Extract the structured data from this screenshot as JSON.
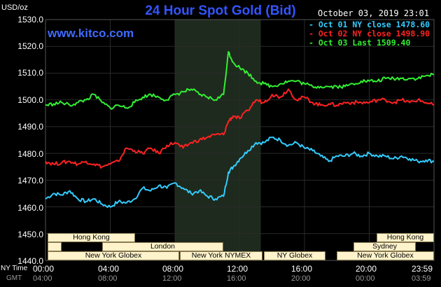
{
  "header": {
    "title": "24 Hour Spot Gold (Bid)",
    "brand": "www.kitco.com",
    "units": "USD/oz",
    "datetime": "October 03, 2019 23:01"
  },
  "legend": [
    {
      "label": "Oct 01 NY close 1478.60",
      "color": "#33ccff"
    },
    {
      "label": "Oct 02 NY close 1498.90",
      "color": "#ff2222"
    },
    {
      "label": "Oct 03 Last 1509.40",
      "color": "#33ee33"
    }
  ],
  "axes": {
    "y_ticks": [
      "1530.0",
      "1520.0",
      "1510.0",
      "1500.0",
      "1490.0",
      "1480.0",
      "1470.0",
      "1460.0",
      "1450.0",
      "1440.0"
    ],
    "x_ticks_ny": [
      "00:00",
      "04:00",
      "08:00",
      "12:00",
      "16:00",
      "20:00",
      "23:59"
    ],
    "x_ticks_gmt": [
      "04:00",
      "08:00",
      "12:00",
      "16:00",
      "20:00",
      "00:00",
      "03:59"
    ],
    "row_label_ny": "NY Time",
    "row_label_gmt": "GMT"
  },
  "sessions": {
    "hong_kong_left": "Hong Kong",
    "london": "London",
    "new_york_globex_left": "New York Globex",
    "new_york_nymex": "New York NYMEX",
    "ny_globex": "NY Globex",
    "hong_kong_right": "Hong Kong",
    "sydney": "Sydney",
    "new_york_globex_right": "New York Globex"
  },
  "colors": {
    "background": "#000000",
    "plot_area": "#000000",
    "highlight_band": "#1e2a1e",
    "grid": "#2a2a2a",
    "title": "#3355ff"
  },
  "chart_data": {
    "type": "line",
    "x_unit": "hours since 00:00 NY",
    "ylim": [
      1440,
      1530
    ],
    "xlim": [
      0,
      24
    ],
    "grid": true,
    "legend_position": "top-right",
    "highlight": {
      "from": 8,
      "to": 13.3
    },
    "series": [
      {
        "name": "Oct 01 NY close 1478.60",
        "color": "#33ccff",
        "points": [
          [
            0,
            1463
          ],
          [
            0.5,
            1465
          ],
          [
            1,
            1464.5
          ],
          [
            1.5,
            1466
          ],
          [
            2,
            1463
          ],
          [
            2.5,
            1462
          ],
          [
            3,
            1463
          ],
          [
            3.5,
            1461
          ],
          [
            4,
            1460
          ],
          [
            4.5,
            1462
          ],
          [
            5,
            1461.5
          ],
          [
            5.5,
            1463
          ],
          [
            6,
            1467
          ],
          [
            6.5,
            1466
          ],
          [
            7,
            1468
          ],
          [
            7.5,
            1467
          ],
          [
            8,
            1469
          ],
          [
            8.5,
            1467
          ],
          [
            9,
            1465
          ],
          [
            9.5,
            1466
          ],
          [
            10,
            1464
          ],
          [
            10.5,
            1463
          ],
          [
            11,
            1464
          ],
          [
            11.3,
            1473
          ],
          [
            11.6,
            1475
          ],
          [
            12,
            1478
          ],
          [
            12.5,
            1481
          ],
          [
            13,
            1484
          ],
          [
            13.5,
            1484
          ],
          [
            14,
            1486
          ],
          [
            14.5,
            1485
          ],
          [
            15,
            1483
          ],
          [
            15.5,
            1484
          ],
          [
            16,
            1482
          ],
          [
            16.5,
            1481
          ],
          [
            17,
            1479
          ],
          [
            17.5,
            1477
          ],
          [
            18,
            1479
          ],
          [
            18.5,
            1479
          ],
          [
            19,
            1480
          ],
          [
            19.5,
            1479
          ],
          [
            20,
            1480
          ],
          [
            20.5,
            1479
          ],
          [
            21,
            1479
          ],
          [
            21.5,
            1478
          ],
          [
            22,
            1479
          ],
          [
            22.5,
            1478
          ],
          [
            23,
            1477
          ],
          [
            23.5,
            1477.5
          ],
          [
            24,
            1477
          ]
        ]
      },
      {
        "name": "Oct 02 NY close 1498.90",
        "color": "#ff2222",
        "points": [
          [
            0,
            1477
          ],
          [
            0.5,
            1476
          ],
          [
            1,
            1476.5
          ],
          [
            1.5,
            1477
          ],
          [
            2,
            1476
          ],
          [
            2.5,
            1477
          ],
          [
            3,
            1476
          ],
          [
            3.5,
            1475
          ],
          [
            4,
            1476
          ],
          [
            4.5,
            1477
          ],
          [
            5,
            1482
          ],
          [
            5.5,
            1481
          ],
          [
            6,
            1480
          ],
          [
            6.5,
            1482
          ],
          [
            7,
            1480
          ],
          [
            7.5,
            1483
          ],
          [
            8,
            1484
          ],
          [
            8.5,
            1482
          ],
          [
            9,
            1484
          ],
          [
            9.5,
            1485
          ],
          [
            10,
            1486
          ],
          [
            10.5,
            1487
          ],
          [
            11,
            1487
          ],
          [
            11.3,
            1492
          ],
          [
            11.6,
            1494
          ],
          [
            12,
            1493
          ],
          [
            12.5,
            1496
          ],
          [
            13,
            1500
          ],
          [
            13.5,
            1499
          ],
          [
            14,
            1502
          ],
          [
            14.5,
            1501
          ],
          [
            15,
            1504
          ],
          [
            15.5,
            1500
          ],
          [
            16,
            1501
          ],
          [
            16.5,
            1499
          ],
          [
            17,
            1498
          ],
          [
            17.5,
            1498.5
          ],
          [
            18,
            1498
          ],
          [
            18.5,
            1499
          ],
          [
            19,
            1499
          ],
          [
            19.5,
            1499
          ],
          [
            20,
            1499
          ],
          [
            20.5,
            1500
          ],
          [
            21,
            1500
          ],
          [
            21.5,
            1499
          ],
          [
            22,
            1500
          ],
          [
            22.5,
            1499
          ],
          [
            23,
            1500
          ],
          [
            23.5,
            1499
          ],
          [
            24,
            1498
          ]
        ]
      },
      {
        "name": "Oct 03 Last 1509.40",
        "color": "#33ee33",
        "points": [
          [
            0,
            1498
          ],
          [
            0.5,
            1498.5
          ],
          [
            1,
            1499
          ],
          [
            1.5,
            1498
          ],
          [
            2,
            1499
          ],
          [
            2.5,
            1500
          ],
          [
            3,
            1502
          ],
          [
            3.5,
            1499
          ],
          [
            4,
            1497
          ],
          [
            4.5,
            1498
          ],
          [
            5,
            1497
          ],
          [
            5.5,
            1499
          ],
          [
            6,
            1501
          ],
          [
            6.5,
            1502
          ],
          [
            7,
            1501
          ],
          [
            7.5,
            1500
          ],
          [
            8,
            1502
          ],
          [
            8.5,
            1503
          ],
          [
            9,
            1504
          ],
          [
            9.5,
            1502
          ],
          [
            10,
            1501
          ],
          [
            10.5,
            1500
          ],
          [
            11,
            1502
          ],
          [
            11.3,
            1518
          ],
          [
            11.6,
            1514
          ],
          [
            12,
            1512
          ],
          [
            12.5,
            1510
          ],
          [
            13,
            1507
          ],
          [
            13.5,
            1506
          ],
          [
            14,
            1505
          ],
          [
            14.5,
            1506
          ],
          [
            15,
            1507
          ],
          [
            15.5,
            1507
          ],
          [
            16,
            1506
          ],
          [
            16.5,
            1505
          ],
          [
            17,
            1505
          ],
          [
            17.5,
            1505
          ],
          [
            18,
            1505
          ],
          [
            18.5,
            1505
          ],
          [
            19,
            1506
          ],
          [
            19.5,
            1507
          ],
          [
            20,
            1507
          ],
          [
            20.5,
            1507
          ],
          [
            21,
            1508
          ],
          [
            21.5,
            1508
          ],
          [
            22,
            1508
          ],
          [
            22.5,
            1508
          ],
          [
            23,
            1508
          ],
          [
            23.5,
            1509
          ],
          [
            24,
            1509.4
          ]
        ]
      }
    ]
  }
}
